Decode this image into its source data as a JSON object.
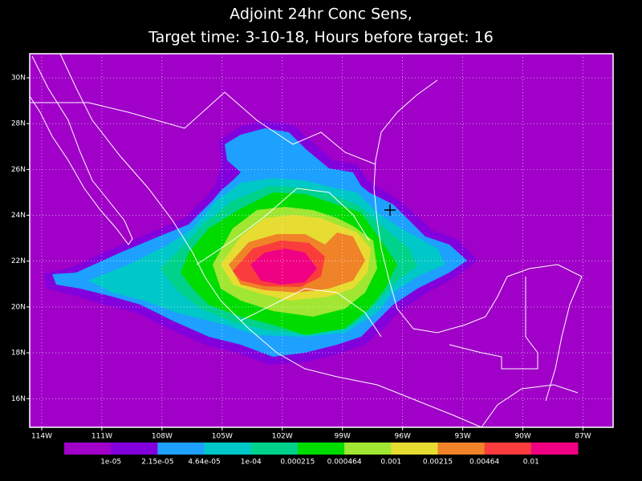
{
  "title": [
    "Adjoint 24hr Conc Sens,",
    "Target time: 3-10-18, Hours before target: 16"
  ],
  "map": {
    "xlim": [
      -114.6,
      -85.5
    ],
    "ylim": [
      14.75,
      31.05
    ],
    "xticks": [
      {
        "value": -114,
        "label": "114W"
      },
      {
        "value": -111,
        "label": "111W"
      },
      {
        "value": -108,
        "label": "108W"
      },
      {
        "value": -105,
        "label": "105W"
      },
      {
        "value": -102,
        "label": "102W"
      },
      {
        "value": -99,
        "label": "99W"
      },
      {
        "value": -96,
        "label": "96W"
      },
      {
        "value": -93,
        "label": "93W"
      },
      {
        "value": -90,
        "label": "90W"
      },
      {
        "value": -87,
        "label": "87W"
      }
    ],
    "yticks": [
      {
        "value": 16,
        "label": "16N"
      },
      {
        "value": 18,
        "label": "18N"
      },
      {
        "value": 20,
        "label": "20N"
      },
      {
        "value": 22,
        "label": "22N"
      },
      {
        "value": 24,
        "label": "24N"
      },
      {
        "value": 26,
        "label": "26N"
      },
      {
        "value": 28,
        "label": "28N"
      },
      {
        "value": 30,
        "label": "30N"
      }
    ],
    "grid": true
  },
  "colorbar": {
    "colors": [
      "#a000c8",
      "#8200dc",
      "#1ea0ff",
      "#00c8c8",
      "#00d28c",
      "#00dc00",
      "#a0e632",
      "#e6dc32",
      "#f08228",
      "#fa3c3c",
      "#f00082"
    ],
    "levels": [
      {
        "value": 1e-05,
        "label": "1e-05"
      },
      {
        "value": 2.15e-05,
        "label": "2.15e-05"
      },
      {
        "value": 4.64e-05,
        "label": "4.64e-05"
      },
      {
        "value": 0.0001,
        "label": "1e-04"
      },
      0.000215,
      0.000464,
      0.001,
      0.00215,
      0.00464,
      0.01
    ]
  }
}
